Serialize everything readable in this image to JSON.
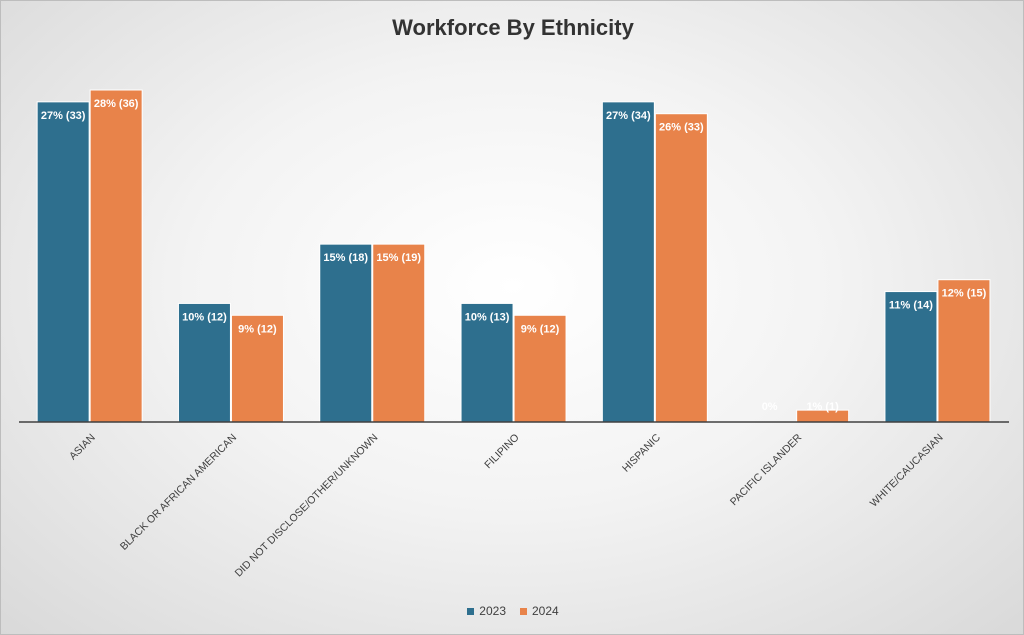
{
  "chart_data": {
    "type": "bar",
    "title": "Workforce By Ethnicity",
    "categories": [
      "ASIAN",
      "BLACK OR AFRICAN AMERICAN",
      "DID NOT DISCLOSE/OTHER/UNKNOWN",
      "FILIPINO",
      "HISPANIC",
      "PACIFIC ISLANDER",
      "WHITE/CAUCASIAN"
    ],
    "series": [
      {
        "name": "2023",
        "color": "#2e6f8e",
        "values": [
          27,
          10,
          15,
          10,
          27,
          0,
          11
        ],
        "labels": [
          "27% (33)",
          "10% (12)",
          "15% (18)",
          "10% (13)",
          "27% (34)",
          "0%",
          "11% (14)"
        ]
      },
      {
        "name": "2024",
        "color": "#e8834a",
        "values": [
          28,
          9,
          15,
          9,
          26,
          1,
          12
        ],
        "labels": [
          "28% (36)",
          "9% (12)",
          "15% (19)",
          "9% (12)",
          "26% (33)",
          "1% (1)",
          "12% (15)"
        ]
      }
    ],
    "xlabel": "",
    "ylabel": "",
    "ylim": [
      0,
      28
    ],
    "grid": false,
    "legend_position": "bottom"
  }
}
